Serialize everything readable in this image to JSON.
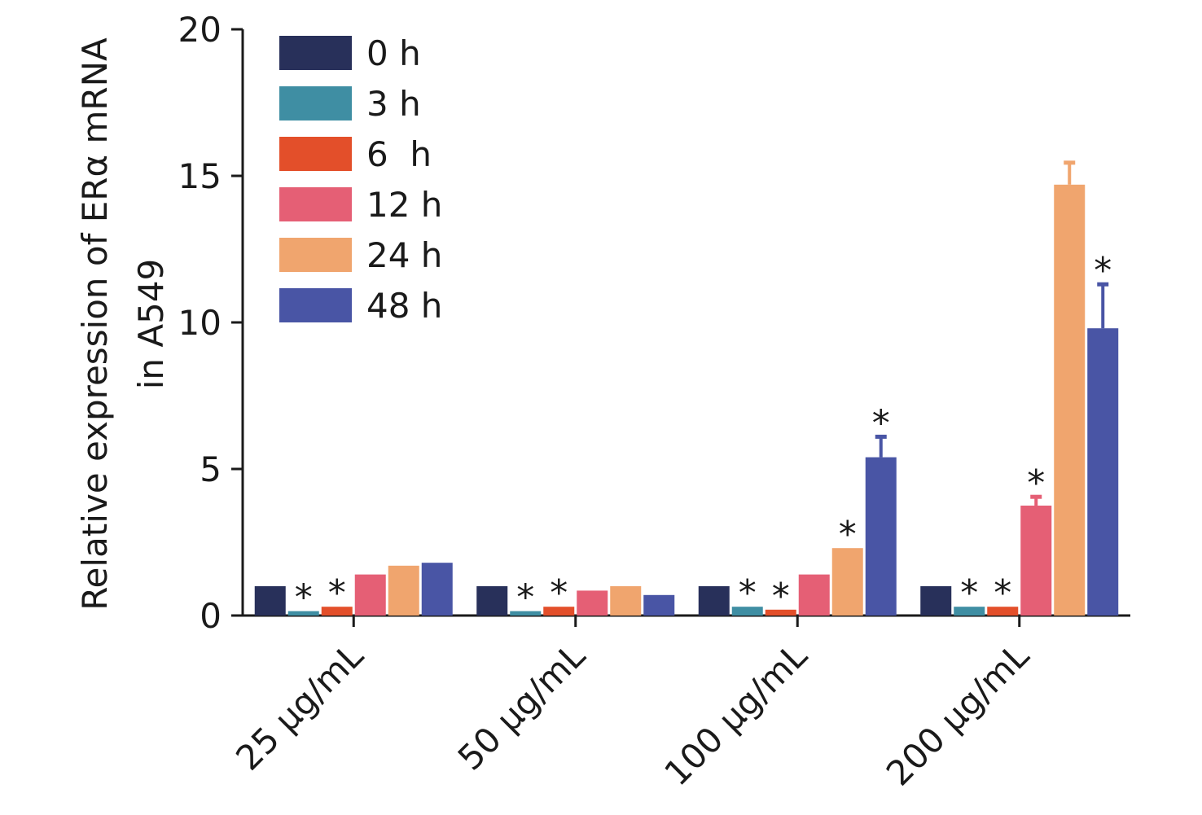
{
  "chart_data": {
    "type": "bar",
    "title": "",
    "xlabel": "",
    "ylabel": [
      "Relative expression of ERα mRNA",
      "in A549"
    ],
    "ylim": [
      0,
      20
    ],
    "yticks": [
      "0",
      "5",
      "10",
      "15",
      "20"
    ],
    "categories": [
      "25 μg/mL",
      "50 μg/mL",
      "100 μg/mL",
      "200 μg/mL"
    ],
    "legend_position": "top-left",
    "grid": false,
    "series": [
      {
        "name": "0 h",
        "color": "#28305a",
        "values": [
          1.0,
          1.0,
          1.0,
          1.0
        ],
        "errors": [
          0,
          0,
          0,
          0
        ],
        "significant": [
          false,
          false,
          false,
          false
        ]
      },
      {
        "name": "3 h",
        "color": "#3f8ea3",
        "values": [
          0.15,
          0.15,
          0.3,
          0.3
        ],
        "errors": [
          0,
          0,
          0,
          0
        ],
        "significant": [
          true,
          true,
          true,
          true
        ]
      },
      {
        "name": "6  h",
        "color": "#e34f2a",
        "values": [
          0.3,
          0.3,
          0.2,
          0.3
        ],
        "errors": [
          0,
          0,
          0,
          0
        ],
        "significant": [
          true,
          true,
          true,
          true
        ]
      },
      {
        "name": "12 h",
        "color": "#e55f75",
        "values": [
          1.4,
          0.85,
          1.4,
          3.75
        ],
        "errors": [
          0,
          0,
          0,
          0.3
        ],
        "significant": [
          false,
          false,
          false,
          true
        ]
      },
      {
        "name": "24 h",
        "color": "#f0a56e",
        "values": [
          1.7,
          1.0,
          2.3,
          14.7
        ],
        "errors": [
          0,
          0,
          0,
          0.75
        ],
        "significant": [
          false,
          false,
          true,
          false
        ]
      },
      {
        "name": "48 h",
        "color": "#4955a5",
        "values": [
          1.8,
          0.7,
          5.4,
          9.8
        ],
        "errors": [
          0,
          0,
          0.7,
          1.5
        ],
        "significant": [
          false,
          false,
          true,
          true
        ]
      }
    ],
    "significance_marker": "*"
  }
}
